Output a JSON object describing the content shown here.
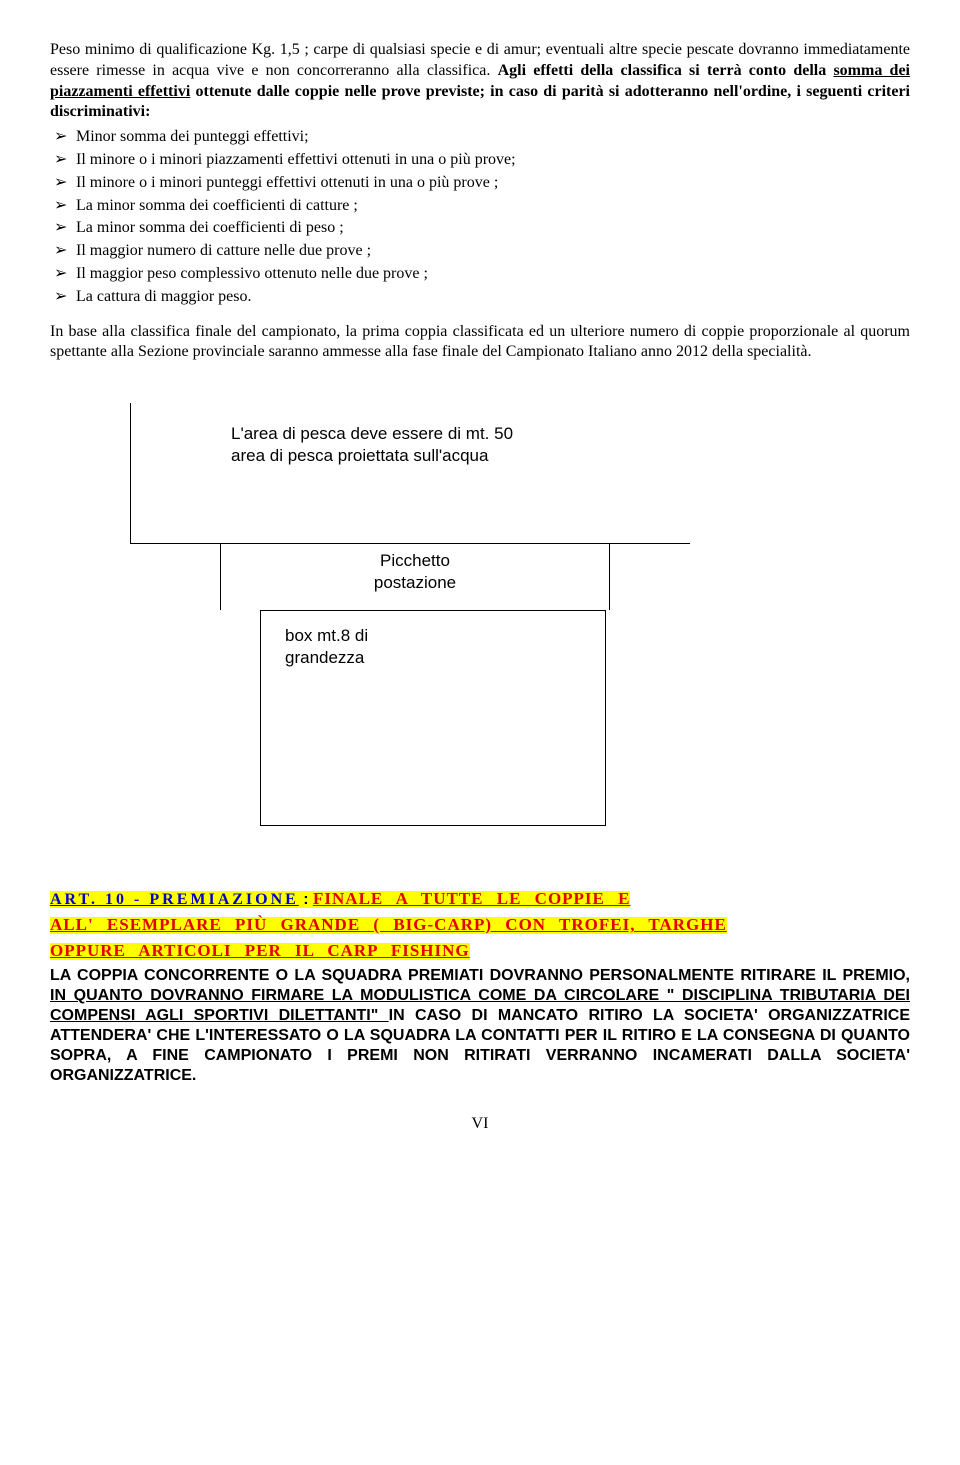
{
  "p1": {
    "a": "Peso minimo di qualificazione Kg. 1,5 ; carpe di qualsiasi specie e di amur; eventuali altre specie pescate dovranno immediatamente essere rimesse in acqua vive e non concorreranno alla classifica. ",
    "b1": "Agli effetti della classifica si terrà conto della ",
    "b2": "somma dei piazzamenti  effettivi",
    "b3": " ottenute dalle coppie nelle prove previste; in caso di parità  si adotteranno nell'ordine, i seguenti criteri discriminativi:"
  },
  "bullets": [
    "Minor somma dei  punteggi effettivi;",
    "Il minore o i minori piazzamenti effettivi ottenuti in una o più prove;",
    "Il minore o i minori punteggi  effettivi ottenuti in una o più prove ;",
    "La minor somma dei  coefficienti di catture ;",
    "La minor somma dei  coefficienti  di peso ;",
    "Il maggior  numero di catture nelle  due prove ;",
    "Il maggior  peso complessivo ottenuto nelle due prove  ;",
    "La cattura  di maggior peso."
  ],
  "p2": "In base alla classifica finale del campionato, la prima coppia classificata ed un ulteriore numero di coppie proporzionale al quorum spettante alla Sezione provinciale saranno ammesse alla fase finale del Campionato Italiano anno 2012 della specialità.",
  "diagram": {
    "area1": "L'area di pesca deve essere di mt. 50",
    "area2": "area di pesca proiettata sull'acqua",
    "picchetto1": "Picchetto",
    "picchetto2": "postazione",
    "box1": "box  mt.8 di",
    "box2": "grandezza"
  },
  "art10": {
    "label": "ART. 10 - PREMIAZIONE",
    "colon": " : ",
    "hl1": "FINALE   A   TUTTE   LE   COPPIE   E",
    "hl2": "ALL' ESEMPLARE  PIÙ  GRANDE    ( BIG-CARP)  CON TROFEI,  TARGHE",
    "hl3": "OPPURE  ARTICOLI   PER  IL   CARP FISHING",
    "body1": "LA COPPIA CONCORRENTE O LA SQUADRA PREMIATI DOVRANNO PERSONALMENTE RITIRARE IL PREMIO, ",
    "body_und": "IN QUANTO DOVRANNO FIRMARE LA MODULISTICA COME DA CIRCOLARE \" DISCIPLINA TRIBUTARIA DEI COMPENSI AGLI SPORTIVI DILETTANTI\" ",
    "body2": "IN CASO DI MANCATO RITIRO LA SOCIETA' ORGANIZZATRICE ATTENDERA' CHE L'INTERESSATO O LA SQUADRA LA CONTATTI PER IL RITIRO E LA CONSEGNA DI QUANTO SOPRA, A FINE CAMPIONATO I PREMI NON RITIRATI VERRANNO INCAMERATI DALLA SOCIETA' ORGANIZZATRICE."
  },
  "footer": "VI"
}
